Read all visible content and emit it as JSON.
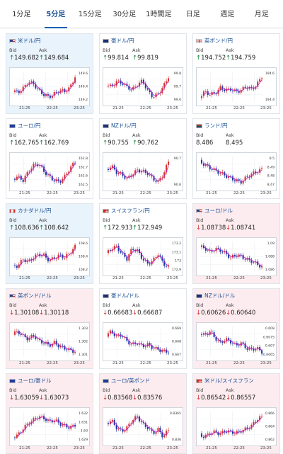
{
  "tabs": [
    "1分足",
    "5分足",
    "15分足",
    "30分足",
    "1時間足",
    "日足",
    "週足",
    "月足"
  ],
  "active_tab": 1,
  "bid_label": "Bid",
  "ask_label": "Ask",
  "time_labels": [
    "21:25",
    "22:25",
    "23:25"
  ],
  "colors": {
    "up": "#1a8a3c",
    "down": "#d02727",
    "candle_up": "#d23232",
    "candle_down": "#1c3aa8",
    "ma": "#c020c0"
  },
  "cards": [
    {
      "pair": "米ドル/円",
      "flag": "us",
      "bg": "blue",
      "bid": "149.682",
      "ask": "149.684",
      "dir": "up",
      "ticks": [
        "149.6",
        "149.4",
        "149.2"
      ],
      "trend": [
        149.3,
        149.25,
        149.35,
        149.5,
        149.45,
        149.3,
        149.2,
        149.15,
        149.22,
        149.3,
        149.28,
        149.36,
        149.62
      ]
    },
    {
      "pair": "豪ドル/円",
      "flag": "au",
      "bg": "white",
      "bid": "99.814",
      "ask": "99.819",
      "dir": "up",
      "ticks": [
        "99.8",
        "99.7",
        "99.6"
      ],
      "trend": [
        99.72,
        99.7,
        99.75,
        99.74,
        99.7,
        99.67,
        99.72,
        99.76,
        99.66,
        99.6,
        99.63,
        99.7,
        99.8
      ]
    },
    {
      "pair": "英ポンド/円",
      "flag": "gb",
      "bg": "white",
      "bid": "194.752",
      "ask": "194.759",
      "dir": "up",
      "ticks": [
        "194.6",
        "194.4"
      ],
      "trend": [
        194.35,
        194.45,
        194.4,
        194.42,
        194.52,
        194.48,
        194.5,
        194.45,
        194.48,
        194.55,
        194.5,
        194.58,
        194.74
      ]
    },
    {
      "pair": "ユーロ/円",
      "flag": "eu",
      "bg": "white",
      "bid": "162.765",
      "ask": "162.769",
      "dir": "up",
      "ticks": [
        "162.8",
        "162.7",
        "162.6",
        "162.5"
      ],
      "trend": [
        162.52,
        162.55,
        162.5,
        162.62,
        162.7,
        162.72,
        162.62,
        162.55,
        162.5,
        162.48,
        162.55,
        162.66,
        162.75
      ]
    },
    {
      "pair": "NZドル/円",
      "flag": "nz",
      "bg": "white",
      "bid": "90.755",
      "ask": "90.762",
      "dir": "up",
      "ticks": [
        "90.7",
        "90.6"
      ],
      "trend": [
        90.66,
        90.7,
        90.64,
        90.62,
        90.58,
        90.62,
        90.66,
        90.65,
        90.63,
        90.58,
        90.55,
        90.62,
        90.74
      ]
    },
    {
      "pair": "ランド/円",
      "flag": "za",
      "bg": "white",
      "bid": "8.486",
      "ask": "8.495",
      "dir": "",
      "ticks": [
        "8.5",
        "8.49",
        "8.48",
        "8.47"
      ],
      "trend": [
        8.5,
        8.495,
        8.49,
        8.486,
        8.482,
        8.478,
        8.474,
        8.47,
        8.468,
        8.475,
        8.48,
        8.484,
        8.488
      ]
    },
    {
      "pair": "カナダドル/円",
      "flag": "ca",
      "bg": "blue",
      "bid": "108.636",
      "ask": "108.642",
      "dir": "up",
      "ticks": [
        "108.6",
        "108.4",
        "108.2"
      ],
      "trend": [
        108.3,
        108.32,
        108.42,
        108.38,
        108.45,
        108.5,
        108.48,
        108.4,
        108.44,
        108.48,
        108.45,
        108.52,
        108.62
      ]
    },
    {
      "pair": "スイスフラン/円",
      "flag": "ch",
      "bg": "white",
      "bid": "172.933",
      "ask": "172.949",
      "dir": "up",
      "ticks": [
        "173.2",
        "173.1",
        "173",
        "172.9"
      ],
      "trend": [
        173.05,
        173.1,
        173.12,
        173.05,
        173.0,
        173.1,
        173.08,
        173.0,
        172.95,
        172.98,
        173.05,
        172.95,
        172.92
      ]
    },
    {
      "pair": "ユーロ/ドル",
      "flag": "us",
      "bg": "pink",
      "bid": "1.08738",
      "ask": "1.08741",
      "dir": "down",
      "ticks": [
        "1.09",
        "1.088",
        "1.086"
      ],
      "trend": [
        1.0895,
        1.0893,
        1.0888,
        1.0892,
        1.089,
        1.0886,
        1.088,
        1.0884,
        1.0882,
        1.0878,
        1.0876,
        1.0872,
        1.0868
      ]
    },
    {
      "pair": "英ポンド/ドル",
      "flag": "us",
      "bg": "pink",
      "bid": "1.30108",
      "ask": "1.30118",
      "dir": "down",
      "ticks": [
        "1.303",
        "1.302",
        "1.301"
      ],
      "trend": [
        1.3028,
        1.303,
        1.3025,
        1.3022,
        1.3026,
        1.302,
        1.3018,
        1.3015,
        1.3018,
        1.3014,
        1.3012,
        1.301,
        1.3008
      ]
    },
    {
      "pair": "豪ドル/ドル",
      "flag": "au",
      "bg": "white",
      "bid": "0.66683",
      "ask": "0.66687",
      "dir": "down",
      "ticks": [
        "0.669",
        "0.668",
        "0.667"
      ],
      "trend": [
        0.6688,
        0.6692,
        0.6686,
        0.6688,
        0.668,
        0.6676,
        0.6678,
        0.6674,
        0.6676,
        0.6672,
        0.667,
        0.6668,
        0.6667
      ]
    },
    {
      "pair": "NZドル/ドル",
      "flag": "nz",
      "bg": "pink",
      "bid": "0.60626",
      "ask": "0.60640",
      "dir": "down",
      "ticks": [
        "0.608",
        "0.6075",
        "0.607",
        "0.6065"
      ],
      "trend": [
        0.6078,
        0.6076,
        0.6079,
        0.6074,
        0.607,
        0.6073,
        0.6071,
        0.6068,
        0.607,
        0.6066,
        0.6065,
        0.6066,
        0.6063
      ]
    },
    {
      "pair": "ユーロ/豪ドル",
      "flag": "eu",
      "bg": "pink",
      "bid": "1.63059",
      "ask": "1.63073",
      "dir": "down",
      "ticks": [
        "1.632",
        "1.631",
        "1.63",
        "1.629"
      ],
      "trend": [
        1.6292,
        1.6294,
        1.6302,
        1.6308,
        1.6312,
        1.6316,
        1.6314,
        1.631,
        1.6312,
        1.6308,
        1.6305,
        1.6303,
        1.6306
      ]
    },
    {
      "pair": "ユーロ/英ポンド",
      "flag": "eu",
      "bg": "pink",
      "bid": "0.83568",
      "ask": "0.83576",
      "dir": "down",
      "ticks": [
        "0.8365",
        "0.836"
      ],
      "trend": [
        0.836,
        0.8362,
        0.8358,
        0.8356,
        0.8358,
        0.8362,
        0.8364,
        0.836,
        0.8358,
        0.8355,
        0.8357,
        0.8353,
        0.8357
      ]
    },
    {
      "pair": "米ドル/スイスフラン",
      "flag": "ch",
      "bg": "pink",
      "bid": "0.86542",
      "ask": "0.86557",
      "dir": "down",
      "ticks": [
        "0.866",
        "0.864",
        "0.862"
      ],
      "trend": [
        0.8625,
        0.8622,
        0.8628,
        0.863,
        0.8627,
        0.8632,
        0.863,
        0.8628,
        0.8632,
        0.8635,
        0.864,
        0.865,
        0.8655
      ]
    }
  ]
}
